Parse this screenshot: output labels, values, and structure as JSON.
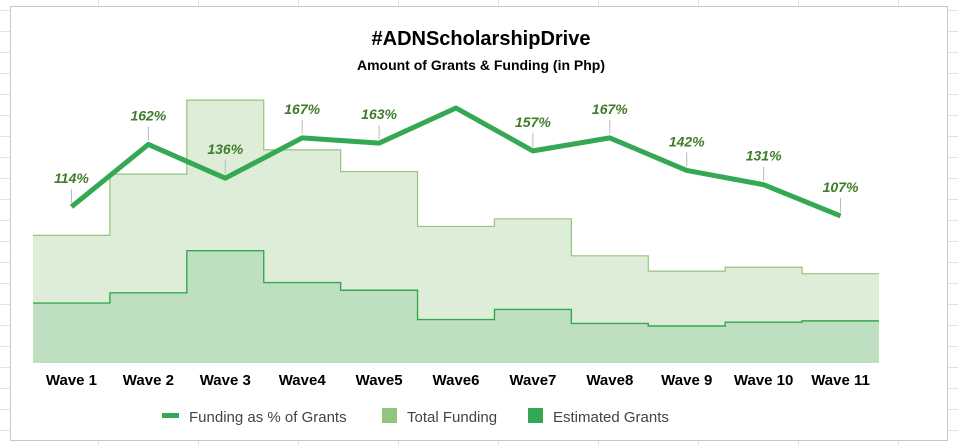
{
  "chart_data": {
    "type": "area",
    "title": "#ADNScholarshipDrive",
    "subtitle": "Amount of Grants & Funding (in Php)",
    "categories": [
      "Wave 1",
      "Wave 2",
      "Wave 3",
      "Wave4",
      "Wave5",
      "Wave6",
      "Wave7",
      "Wave8",
      "Wave 9",
      "Wave 10",
      "Wave 11"
    ],
    "series": [
      {
        "name": "Funding as % of Grants",
        "type": "line",
        "color": "#34a853",
        "values": [
          114,
          162,
          136,
          167,
          163,
          190,
          157,
          167,
          142,
          131,
          107
        ],
        "labels": [
          "114%",
          "162%",
          "136%",
          "167%",
          "163%",
          "",
          "157%",
          "167%",
          "142%",
          "131%",
          "107%"
        ]
      },
      {
        "name": "Total Funding",
        "type": "stepped-area",
        "color": "#93c47d",
        "values": [
          100,
          148,
          206,
          167,
          150,
          107,
          113,
          84,
          72,
          75,
          70
        ]
      },
      {
        "name": "Estimated Grants",
        "type": "stepped-area",
        "color": "#34a853",
        "values": [
          47,
          55,
          88,
          63,
          57,
          34,
          42,
          31,
          29,
          32,
          33
        ]
      }
    ],
    "ylim": [
      0,
      210
    ],
    "grid": false,
    "legend_position": "bottom"
  }
}
